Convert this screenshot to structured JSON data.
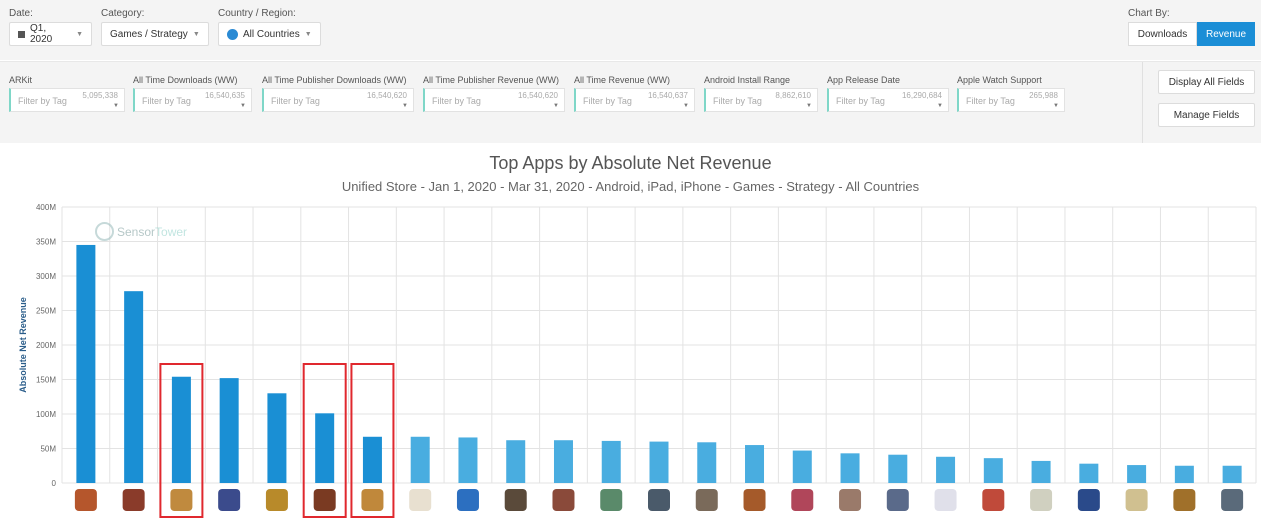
{
  "filters": {
    "date": {
      "label": "Date:",
      "value": "Q1, 2020"
    },
    "category": {
      "label": "Category:",
      "value": "Games / Strategy"
    },
    "region": {
      "label": "Country / Region:",
      "value": "All Countries"
    },
    "chart_by": {
      "label": "Chart By:",
      "options": [
        "Downloads",
        "Revenue"
      ],
      "selected": "Revenue"
    }
  },
  "field_filters": [
    {
      "header": "ARKit",
      "placeholder": "Filter by Tag",
      "count": "5,095,338"
    },
    {
      "header": "All Time Downloads (WW)",
      "placeholder": "Filter by Tag",
      "count": "16,540,635"
    },
    {
      "header": "All Time Publisher Downloads (WW)",
      "placeholder": "Filter by Tag",
      "count": "16,540,620"
    },
    {
      "header": "All Time Publisher Revenue (WW)",
      "placeholder": "Filter by Tag",
      "count": "16,540,620"
    },
    {
      "header": "All Time Revenue (WW)",
      "placeholder": "Filter by Tag",
      "count": "16,540,637"
    },
    {
      "header": "Android Install Range",
      "placeholder": "Filter by Tag",
      "count": "8,862,610"
    },
    {
      "header": "App Release Date",
      "placeholder": "Filter by Tag",
      "count": "16,290,684"
    },
    {
      "header": "Apple Watch Support",
      "placeholder": "Filter by Tag",
      "count": "265,988"
    }
  ],
  "buttons": {
    "display_all": "Display All Fields",
    "manage": "Manage Fields"
  },
  "watermark": {
    "brand": "Sensor",
    "brand_accent": "Tower"
  },
  "colors": {
    "bar_dark": "#1a8fd4",
    "bar_light": "#49ade0",
    "highlight": "#e0282e",
    "selected_button": "#1b8ed6"
  },
  "chart_data": {
    "type": "bar",
    "title": "Top Apps by Absolute Net Revenue",
    "subtitle": "Unified Store - Jan 1, 2020 - Mar 31, 2020 - Android, iPad, iPhone - Games - Strategy - All Countries",
    "xlabel": "",
    "ylabel": "Absolute Net Revenue",
    "ylim": [
      0,
      400
    ],
    "yticks": [
      0,
      50,
      100,
      150,
      200,
      250,
      300,
      350,
      400
    ],
    "ytick_labels": [
      "0",
      "50M",
      "100M",
      "150M",
      "200M",
      "250M",
      "300M",
      "350M",
      "400M"
    ],
    "unit": "M",
    "values": [
      345,
      278,
      154,
      152,
      130,
      101,
      67,
      67,
      66,
      62,
      62,
      61,
      60,
      59,
      55,
      47,
      43,
      41,
      38,
      36,
      32,
      28,
      26,
      25,
      25
    ],
    "highlighted_indices": [
      2,
      5,
      6
    ],
    "dark_bar_count": 7,
    "grid": true,
    "legend": "none",
    "categories_shown_as": "app icons"
  }
}
